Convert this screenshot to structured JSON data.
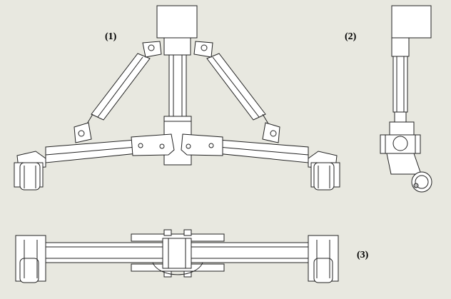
{
  "views": [
    {
      "label": "(1)"
    },
    {
      "label": "(2)"
    },
    {
      "label": "(3)"
    }
  ]
}
